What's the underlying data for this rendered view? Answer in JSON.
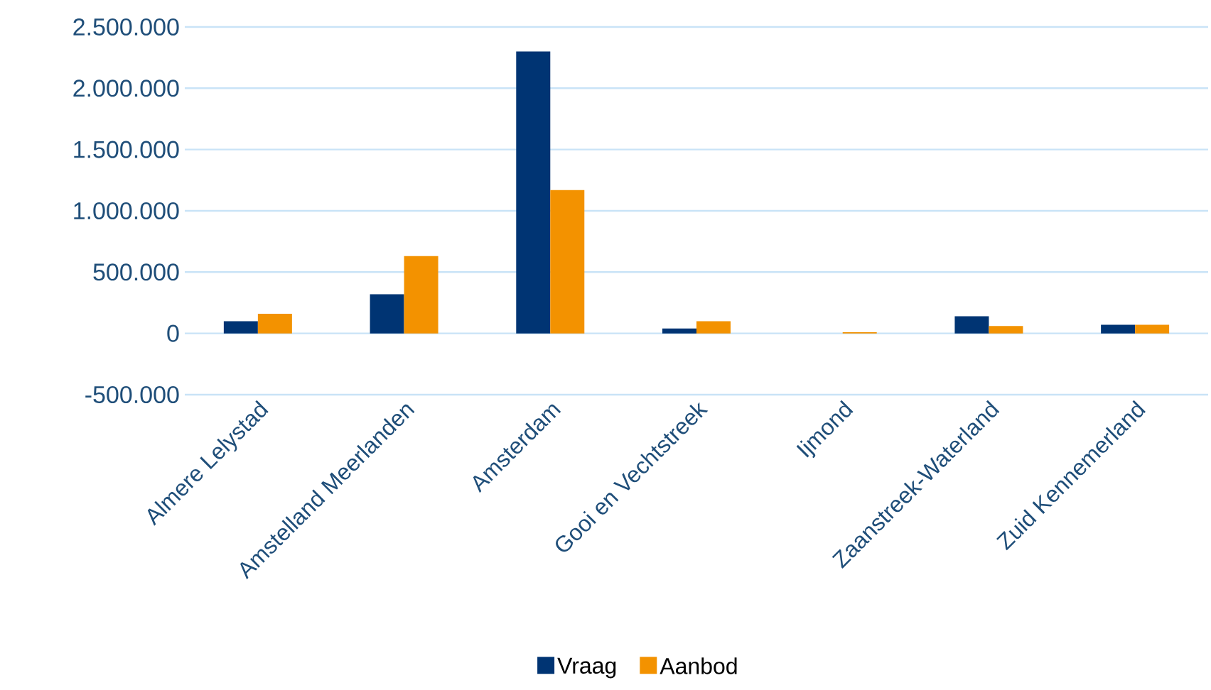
{
  "chart_data": {
    "type": "bar",
    "categories": [
      "Almere Lelystad",
      "Amstelland Meerlanden",
      "Amsterdam",
      "Gooi en Vechtstreek",
      "Ijmond",
      "Zaanstreek-Waterland",
      "Zuid Kennemerland"
    ],
    "series": [
      {
        "name": "Vraag",
        "color": "#003473",
        "values": [
          100000,
          320000,
          2300000,
          40000,
          0,
          140000,
          70000
        ]
      },
      {
        "name": "Aanbod",
        "color": "#f39200",
        "values": [
          160000,
          630000,
          1170000,
          100000,
          10000,
          60000,
          70000
        ]
      }
    ],
    "ylim": [
      -500000,
      2500000
    ],
    "yticks": [
      {
        "value": -500000,
        "label": "-500.000"
      },
      {
        "value": 0,
        "label": "0"
      },
      {
        "value": 500000,
        "label": "500.000"
      },
      {
        "value": 1000000,
        "label": "1.000.000"
      },
      {
        "value": 1500000,
        "label": "1.500.000"
      },
      {
        "value": 2000000,
        "label": "2.000.000"
      },
      {
        "value": 2500000,
        "label": "2.500.000"
      }
    ],
    "grid": "y",
    "legend": "bottom"
  }
}
